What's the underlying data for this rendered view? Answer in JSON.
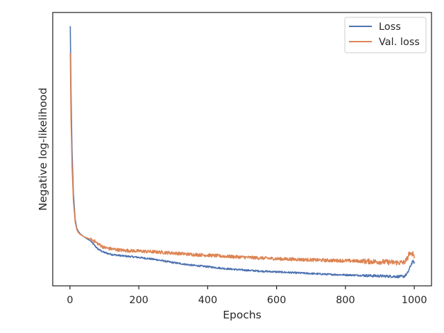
{
  "chart_data": {
    "type": "line",
    "title": "",
    "xlabel": "Epochs",
    "ylabel": "Negative log-likelihood",
    "xlim": [
      -50,
      1050
    ],
    "ylim": [
      0,
      1
    ],
    "x_ticks": [
      0,
      200,
      400,
      600,
      800,
      1000
    ],
    "y_ticks": [],
    "grid": false,
    "legend_position": "top-right",
    "series": [
      {
        "name": "Loss",
        "color": "#4c72b0",
        "x": [
          1,
          3,
          6,
          10,
          15,
          20,
          25,
          30,
          40,
          50,
          60,
          70,
          80,
          90,
          100,
          120,
          150,
          200,
          250,
          300,
          350,
          400,
          450,
          500,
          550,
          600,
          650,
          700,
          750,
          800,
          850,
          900,
          950,
          970,
          980,
          985,
          990,
          995,
          1000
        ],
        "y": [
          0.95,
          0.72,
          0.5,
          0.34,
          0.245,
          0.21,
          0.198,
          0.19,
          0.18,
          0.172,
          0.164,
          0.15,
          0.136,
          0.128,
          0.122,
          0.115,
          0.11,
          0.104,
          0.096,
          0.085,
          0.076,
          0.07,
          0.063,
          0.058,
          0.054,
          0.051,
          0.048,
          0.045,
          0.042,
          0.04,
          0.038,
          0.036,
          0.034,
          0.034,
          0.045,
          0.06,
          0.075,
          0.09,
          0.085
        ],
        "noise": 0.003
      },
      {
        "name": "Val. loss",
        "color": "#dd8452",
        "x": [
          1,
          3,
          6,
          10,
          15,
          20,
          25,
          30,
          40,
          50,
          60,
          70,
          80,
          90,
          100,
          120,
          150,
          200,
          250,
          300,
          350,
          400,
          450,
          500,
          550,
          600,
          650,
          700,
          750,
          800,
          850,
          900,
          950,
          970,
          980,
          985,
          990,
          995,
          1000
        ],
        "y": [
          0.85,
          0.62,
          0.44,
          0.31,
          0.235,
          0.205,
          0.194,
          0.188,
          0.18,
          0.175,
          0.17,
          0.165,
          0.155,
          0.147,
          0.14,
          0.135,
          0.13,
          0.127,
          0.124,
          0.12,
          0.115,
          0.112,
          0.108,
          0.105,
          0.102,
          0.099,
          0.097,
          0.095,
          0.093,
          0.092,
          0.09,
          0.088,
          0.085,
          0.085,
          0.1,
          0.12,
          0.11,
          0.12,
          0.11
        ],
        "noise": 0.006
      }
    ]
  }
}
